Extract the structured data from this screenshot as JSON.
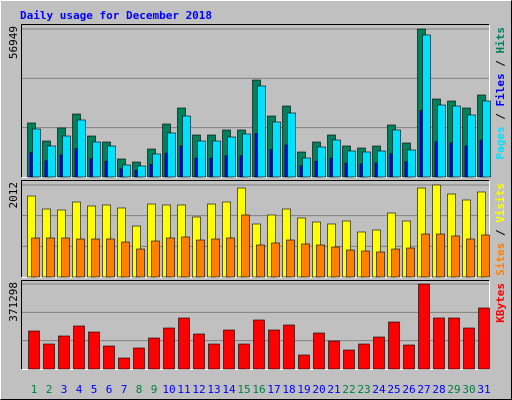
{
  "chart_data": {
    "type": "bar",
    "title": "Daily usage for December 2018",
    "categories": [
      "1",
      "2",
      "3",
      "4",
      "5",
      "6",
      "7",
      "8",
      "9",
      "10",
      "11",
      "12",
      "13",
      "14",
      "15",
      "16",
      "17",
      "18",
      "19",
      "20",
      "21",
      "22",
      "23",
      "24",
      "25",
      "26",
      "27",
      "28",
      "29",
      "30",
      "31"
    ],
    "label_colors": [
      "#008040",
      "#008040",
      "#0000ff",
      "#0000ff",
      "#0000ff",
      "#0000ff",
      "#0000ff",
      "#008040",
      "#008040",
      "#0000ff",
      "#0000ff",
      "#0000ff",
      "#0000ff",
      "#0000ff",
      "#008040",
      "#008040",
      "#0000ff",
      "#0000ff",
      "#0000ff",
      "#0000ff",
      "#0000ff",
      "#008040",
      "#008040",
      "#0000ff",
      "#0000ff",
      "#0000ff",
      "#0000ff",
      "#0000ff",
      "#008040",
      "#008040",
      "#0000ff"
    ],
    "legend_separator": " / ",
    "panels": [
      {
        "ylim": [
          0,
          56949
        ],
        "yticks": [
          56949
        ],
        "series": [
          {
            "name": "Hits",
            "color": "#00805c",
            "values": [
              20778,
              13852,
              18855,
              24242,
              15777,
              13468,
              6926,
              5772,
              10774,
              20394,
              26550,
              16161,
              16161,
              18085,
              18085,
              37324,
              23472,
              27320,
              9620,
              13468,
              16161,
              11928,
              11159,
              11928,
              20009,
              13083,
              56949,
              30013,
              29244,
              26550,
              31553
            ]
          },
          {
            "name": "Files",
            "color": "#0000ff",
            "values": [
              9350,
              6233,
              8485,
              10909,
              7100,
              6061,
              3117,
              2597,
              4848,
              9177,
              11948,
              7272,
              7272,
              8138,
              8138,
              16796,
              10562,
              12294,
              4329,
              6061,
              7272,
              5368,
              5022,
              5368,
              9004,
              5887,
              25627,
              13506,
              13160,
              11948,
              14199
            ]
          },
          {
            "name": "Pages",
            "color": "#00e0ff",
            "values": [
              18470,
              11928,
              15777,
              21933,
              13468,
              11928,
              4617,
              4233,
              8850,
              16931,
              23472,
              13852,
              13852,
              15392,
              16546,
              35016,
              21163,
              24627,
              7311,
              11544,
              14237,
              10005,
              9620,
              10005,
              18085,
              10389,
              54640,
              27705,
              27320,
              23857,
              29244
            ]
          }
        ]
      },
      {
        "ylim": [
          0,
          2012
        ],
        "yticks": [
          2012
        ],
        "series": [
          {
            "name": "Visits",
            "color": "#ffff00",
            "values": [
              1771,
              1487,
              1465,
              1640,
              1553,
              1575,
              1509,
              1115,
              1596,
              1575,
              1575,
              1312,
              1596,
              1640,
              1946,
              1159,
              1356,
              1487,
              1290,
              1203,
              1159,
              1225,
              984,
              1028,
              1400,
              1225,
              1946,
              2012,
              1815,
              1684,
              1859
            ]
          },
          {
            "name": "Sites",
            "color": "#ff8000",
            "values": [
              853,
              853,
              853,
              831,
              831,
              831,
              765,
              612,
              787,
              853,
              875,
              809,
              831,
              853,
              1356,
              700,
              744,
              809,
              722,
              700,
              656,
              590,
              569,
              547,
              612,
              634,
              940,
              940,
              897,
              831,
              919
            ]
          }
        ]
      },
      {
        "ylim": [
          0,
          371298
        ],
        "yticks": [
          371298
        ],
        "series": [
          {
            "name": "KBytes",
            "color": "#ff0000",
            "values": [
              165992,
              109205,
              144150,
              187833,
              161624,
              100469,
              48050,
              91732,
              135414,
              179097,
              222779,
              152887,
              109205,
              170360,
              109205,
              214043,
              170360,
              192201,
              61155,
              157256,
              122310,
              82996,
              109205,
              139783,
              205306,
              104837,
              371298,
              222779,
              222779,
              179097,
              266460
            ]
          }
        ]
      }
    ]
  }
}
